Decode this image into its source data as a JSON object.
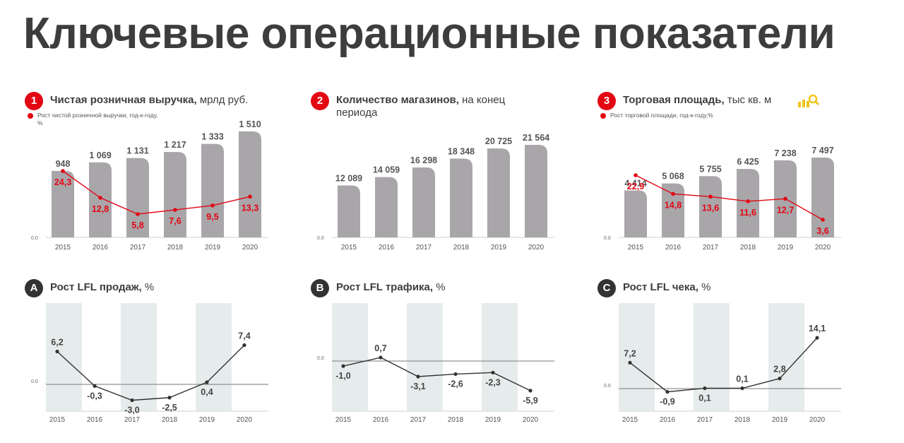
{
  "page": {
    "title": "Ключевые операционные показатели"
  },
  "colors": {
    "bar": "#a9a6aa",
    "accent": "#e30613",
    "line": "#333333",
    "band": "#e6ecec",
    "axis": "#9a9a9a"
  },
  "panels": [
    {
      "badge": "1",
      "title_bold": "Чистая розничная выручка,",
      "title_rest": " мрлд руб.",
      "legend": "Рост чистой розничной выручки, год-к-году, %"
    },
    {
      "badge": "2",
      "title_bold": "Количество магазинов,",
      "title_rest": " на конец периода",
      "legend": ""
    },
    {
      "badge": "3",
      "title_bold": "Торговая площадь,",
      "title_rest": " тыс кв. м",
      "legend": "Рост торговой площади, год-к-году,%",
      "icon": "area-icon"
    },
    {
      "badge": "A",
      "title_bold": "Рост LFL продаж,",
      "title_rest": " %",
      "legend": ""
    },
    {
      "badge": "B",
      "title_bold": "Рост LFL трафика,",
      "title_rest": " %",
      "legend": ""
    },
    {
      "badge": "C",
      "title_bold": "Рост LFL чека,",
      "title_rest": " %",
      "legend": ""
    }
  ],
  "chart_data": [
    {
      "type": "bar",
      "categories": [
        "2015",
        "2016",
        "2017",
        "2018",
        "2019",
        "2020"
      ],
      "zero_label": "0.0",
      "values": [
        948,
        1069,
        1131,
        1217,
        1333,
        1510
      ],
      "value_labels": [
        "948",
        "1 069",
        "1 131",
        "1 217",
        "1 333",
        "1 510"
      ],
      "line": {
        "values": [
          24.3,
          12.8,
          5.8,
          7.6,
          9.5,
          13.3
        ],
        "labels": [
          "24,3",
          "12,8",
          "5,8",
          "7,6",
          "9,5",
          "13,3"
        ]
      }
    },
    {
      "type": "bar",
      "categories": [
        "2015",
        "2016",
        "2017",
        "2018",
        "2019",
        "2020"
      ],
      "zero_label": "0.0",
      "values": [
        12089,
        14059,
        16298,
        18348,
        20725,
        21564
      ],
      "value_labels": [
        "12 089",
        "14 059",
        "16 298",
        "18 348",
        "20 725",
        "21 564"
      ]
    },
    {
      "type": "bar",
      "categories": [
        "2015",
        "2016",
        "2017",
        "2018",
        "2019",
        "2020"
      ],
      "zero_label": "0.0",
      "values": [
        4414,
        5068,
        5755,
        6425,
        7238,
        7497
      ],
      "value_labels": [
        "4 414",
        "5 068",
        "5 755",
        "6 425",
        "7 238",
        "7 497"
      ],
      "line": {
        "values": [
          22.9,
          14.8,
          13.6,
          11.6,
          12.7,
          3.6
        ],
        "labels": [
          "22,9",
          "14,8",
          "13,6",
          "11,6",
          "12,7",
          "3,6"
        ]
      }
    },
    {
      "type": "line",
      "categories": [
        "2015",
        "2016",
        "2017",
        "2018",
        "2019",
        "2020"
      ],
      "zero_label": "0.0",
      "values": [
        6.2,
        -0.3,
        -3.0,
        -2.5,
        0.4,
        7.4
      ],
      "labels": [
        "6,2",
        "-0,3",
        "-3,0",
        "-2,5",
        "0,4",
        "7,4"
      ]
    },
    {
      "type": "line",
      "categories": [
        "2015",
        "2016",
        "2017",
        "2018",
        "2019",
        "2020"
      ],
      "zero_label": "0.0",
      "values": [
        -1.0,
        0.7,
        -3.1,
        -2.6,
        -2.3,
        -5.9
      ],
      "labels": [
        "-1,0",
        "0,7",
        "-3,1",
        "-2,6",
        "-2,3",
        "-5,9"
      ]
    },
    {
      "type": "line",
      "categories": [
        "2015",
        "2016",
        "2017",
        "2018",
        "2019",
        "2020"
      ],
      "zero_label": "0.0",
      "values": [
        7.2,
        -0.9,
        0.1,
        0.1,
        2.8,
        14.1
      ],
      "labels": [
        "7,2",
        "-0,9",
        "0,1",
        "0,1",
        "2,8",
        "14,1"
      ]
    }
  ]
}
